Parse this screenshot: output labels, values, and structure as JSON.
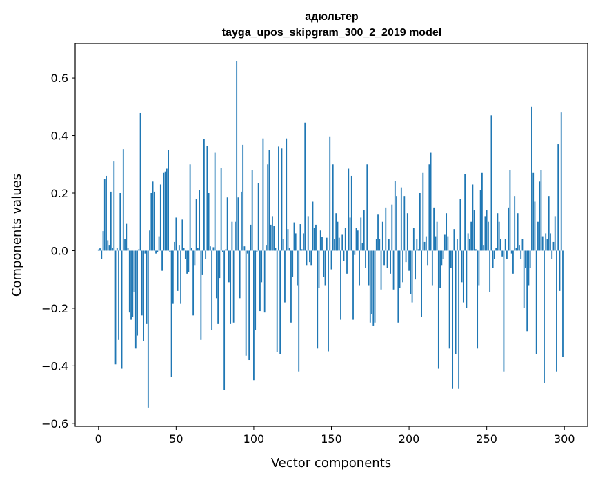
{
  "chart_data": {
    "type": "bar",
    "title_lines": [
      "адюльтер",
      "tayga_upos_skipgram_300_2_2019 model"
    ],
    "xlabel": "Vector components",
    "ylabel": "Components values",
    "xlim": [
      -15,
      315
    ],
    "ylim": [
      -0.61,
      0.72
    ],
    "xticks": [
      0,
      50,
      100,
      150,
      200,
      250,
      300
    ],
    "xtick_labels": [
      "0",
      "50",
      "100",
      "150",
      "200",
      "250",
      "300"
    ],
    "yticks": [
      -0.6,
      -0.4,
      -0.2,
      0.0,
      0.2,
      0.4,
      0.6
    ],
    "ytick_labels": [
      "−0.6",
      "−0.4",
      "−0.2",
      "0.0",
      "0.2",
      "0.4",
      "0.6"
    ],
    "bar_color": "#1f77b4",
    "x": [
      0,
      1,
      2,
      3,
      4,
      5,
      6,
      7,
      8,
      9,
      10,
      11,
      12,
      13,
      14,
      15,
      16,
      17,
      18,
      19,
      20,
      21,
      22,
      23,
      24,
      25,
      26,
      27,
      28,
      29,
      30,
      31,
      32,
      33,
      34,
      35,
      36,
      37,
      38,
      39,
      40,
      41,
      42,
      43,
      44,
      45,
      46,
      47,
      48,
      49,
      50,
      51,
      52,
      53,
      54,
      55,
      56,
      57,
      58,
      59,
      60,
      61,
      62,
      63,
      64,
      65,
      66,
      67,
      68,
      69,
      70,
      71,
      72,
      73,
      74,
      75,
      76,
      77,
      78,
      79,
      80,
      81,
      82,
      83,
      84,
      85,
      86,
      87,
      88,
      89,
      90,
      91,
      92,
      93,
      94,
      95,
      96,
      97,
      98,
      99,
      100,
      101,
      102,
      103,
      104,
      105,
      106,
      107,
      108,
      109,
      110,
      111,
      112,
      113,
      114,
      115,
      116,
      117,
      118,
      119,
      120,
      121,
      122,
      123,
      124,
      125,
      126,
      127,
      128,
      129,
      130,
      131,
      132,
      133,
      134,
      135,
      136,
      137,
      138,
      139,
      140,
      141,
      142,
      143,
      144,
      145,
      146,
      147,
      148,
      149,
      150,
      151,
      152,
      153,
      154,
      155,
      156,
      157,
      158,
      159,
      160,
      161,
      162,
      163,
      164,
      165,
      166,
      167,
      168,
      169,
      170,
      171,
      172,
      173,
      174,
      175,
      176,
      177,
      178,
      179,
      180,
      181,
      182,
      183,
      184,
      185,
      186,
      187,
      188,
      189,
      190,
      191,
      192,
      193,
      194,
      195,
      196,
      197,
      198,
      199,
      200,
      201,
      202,
      203,
      204,
      205,
      206,
      207,
      208,
      209,
      210,
      211,
      212,
      213,
      214,
      215,
      216,
      217,
      218,
      219,
      220,
      221,
      222,
      223,
      224,
      225,
      226,
      227,
      228,
      229,
      230,
      231,
      232,
      233,
      234,
      235,
      236,
      237,
      238,
      239,
      240,
      241,
      242,
      243,
      244,
      245,
      246,
      247,
      248,
      249,
      250,
      251,
      252,
      253,
      254,
      255,
      256,
      257,
      258,
      259,
      260,
      261,
      262,
      263,
      264,
      265,
      266,
      267,
      268,
      269,
      270,
      271,
      272,
      273,
      274,
      275,
      276,
      277,
      278,
      279,
      280,
      281,
      282,
      283,
      284,
      285,
      286,
      287,
      288,
      289,
      290,
      291,
      292,
      293,
      294,
      295,
      296,
      297,
      298,
      299
    ],
    "values": [
      0.004,
      0.008,
      -0.03,
      0.068,
      0.25,
      0.26,
      0.036,
      0.02,
      0.205,
      0.01,
      0.31,
      -0.395,
      0.01,
      -0.31,
      0.2,
      -0.41,
      0.353,
      0.04,
      0.093,
      0.01,
      -0.215,
      -0.24,
      -0.23,
      -0.145,
      -0.34,
      -0.295,
      0.005,
      0.478,
      -0.225,
      -0.315,
      -0.01,
      -0.255,
      -0.545,
      0.07,
      0.2,
      0.24,
      0.205,
      -0.01,
      -0.005,
      0.05,
      0.23,
      -0.07,
      0.27,
      0.275,
      0.285,
      0.35,
      -0.005,
      -0.438,
      -0.185,
      0.03,
      0.115,
      -0.14,
      0.02,
      -0.185,
      0.108,
      0.01,
      -0.03,
      -0.08,
      -0.075,
      0.3,
      0.01,
      -0.225,
      -0.05,
      0.18,
      0.01,
      0.21,
      -0.31,
      -0.085,
      0.387,
      -0.03,
      0.365,
      0.2,
      0.015,
      -0.275,
      0.012,
      0.34,
      -0.165,
      -0.255,
      -0.095,
      0.287,
      -0.005,
      -0.485,
      0.005,
      0.185,
      -0.11,
      -0.255,
      0.1,
      -0.25,
      0.1,
      0.658,
      0.185,
      -0.165,
      0.205,
      0.368,
      0.015,
      -0.365,
      -0.01,
      -0.38,
      0.09,
      0.28,
      -0.45,
      -0.275,
      -0.005,
      0.235,
      -0.21,
      -0.11,
      0.39,
      -0.215,
      0.02,
      0.3,
      0.35,
      0.09,
      0.12,
      0.085,
      0.01,
      -0.352,
      0.362,
      -0.36,
      0.355,
      0.04,
      -0.18,
      0.39,
      0.075,
      0.01,
      -0.25,
      -0.09,
      0.098,
      0.06,
      -0.12,
      -0.42,
      0.092,
      0.005,
      0.06,
      0.445,
      -0.05,
      0.12,
      -0.04,
      -0.05,
      0.17,
      0.08,
      0.09,
      -0.34,
      -0.13,
      0.07,
      0.048,
      -0.09,
      -0.12,
      0.045,
      -0.35,
      0.397,
      -0.065,
      0.3,
      0.04,
      0.13,
      0.1,
      0.045,
      -0.24,
      0.055,
      -0.035,
      0.08,
      -0.08,
      0.285,
      0.115,
      0.26,
      -0.24,
      -0.015,
      0.08,
      0.07,
      -0.12,
      0.115,
      0.025,
      0.14,
      -0.06,
      0.3,
      -0.12,
      -0.25,
      -0.22,
      -0.26,
      -0.25,
      0.04,
      0.125,
      0.04,
      -0.135,
      0.1,
      -0.05,
      0.15,
      -0.06,
      0.04,
      -0.08,
      0.16,
      -0.135,
      0.243,
      0.19,
      -0.25,
      -0.13,
      0.22,
      -0.11,
      0.19,
      -0.04,
      0.13,
      -0.07,
      -0.15,
      -0.18,
      0.08,
      -0.1,
      0.04,
      0.005,
      0.2,
      -0.23,
      0.27,
      0.03,
      0.05,
      -0.05,
      0.3,
      0.34,
      -0.12,
      0.15,
      0.05,
      0.1,
      -0.41,
      -0.13,
      -0.05,
      -0.03,
      0.055,
      0.13,
      0.05,
      -0.34,
      -0.06,
      -0.48,
      0.075,
      -0.36,
      0.04,
      -0.48,
      0.18,
      -0.11,
      -0.18,
      0.265,
      -0.2,
      0.06,
      0.04,
      0.1,
      0.23,
      0.14,
      0.005,
      -0.34,
      -0.12,
      0.21,
      0.27,
      0.02,
      0.12,
      0.14,
      0.1,
      -0.145,
      0.47,
      -0.06,
      -0.03,
      0.01,
      0.13,
      0.1,
      0.04,
      -0.02,
      -0.42,
      0.04,
      -0.03,
      0.15,
      0.28,
      -0.01,
      -0.08,
      0.19,
      0.01,
      0.13,
      0.02,
      -0.03,
      0.04,
      -0.2,
      -0.06,
      -0.28,
      -0.12,
      -0.06,
      0.5,
      0.27,
      0.17,
      -0.36,
      0.1,
      0.24,
      0.28,
      0.05,
      -0.46,
      0.06,
      0.04,
      0.19,
      0.06,
      -0.03,
      0.03,
      0.12,
      -0.42,
      0.37,
      -0.14,
      0.48,
      -0.37
    ]
  }
}
